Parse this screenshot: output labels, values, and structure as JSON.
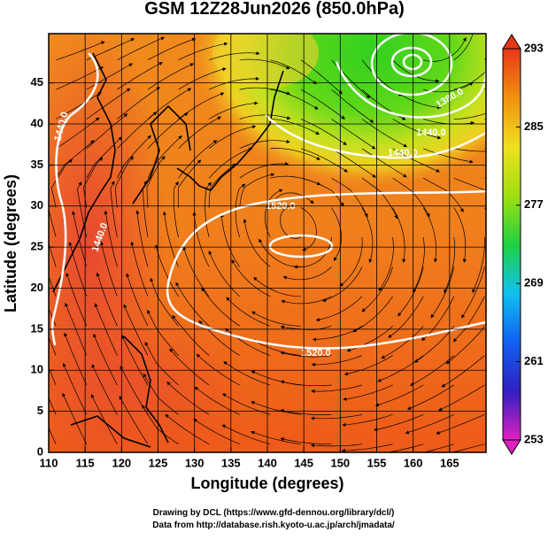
{
  "chart_data": {
    "type": "contour_map",
    "title": "GSM 12Z28Jun2026 (850.0hPa)",
    "xlabel": "Longitude (degrees)",
    "ylabel": "Latitude  (degrees)",
    "xlim": [
      110,
      170
    ],
    "ylim": [
      0,
      51
    ],
    "xticks": [
      110,
      115,
      120,
      125,
      130,
      135,
      140,
      145,
      150,
      155,
      160,
      165
    ],
    "yticks": [
      0,
      5,
      10,
      15,
      20,
      25,
      30,
      35,
      40,
      45
    ],
    "grid": true,
    "colorbar": {
      "lim": [
        253,
        293
      ],
      "ticks": [
        253,
        261,
        269,
        277,
        285,
        293
      ],
      "colors": [
        "#e020c0",
        "#3020c0",
        "#1060f0",
        "#10c0f0",
        "#20d040",
        "#a0e010",
        "#f0e020",
        "#f09010",
        "#e83818"
      ]
    },
    "contour_labels": [
      "1440.0",
      "1440.0",
      "1520.0",
      "1520.0",
      "1440.0",
      "1440.0",
      "1380.0"
    ],
    "footer": [
      "Drawing by DCL (https://www.gfd-dennou.org/library/dcl/)",
      "Data from http://database.rish.kyoto-u.ac.jp/arch/jmadata/"
    ]
  }
}
